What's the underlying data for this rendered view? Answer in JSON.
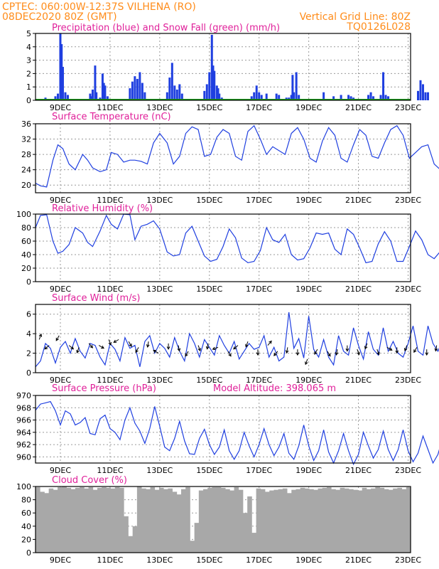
{
  "header": {
    "line1": "CPTEC:   060:00W-12:37S   VILHENA (RO)",
    "line2": "08DEC2020 80Z (GMT)",
    "grid_note": "Vertical Grid Line: 80Z",
    "code": "TQ0126L028"
  },
  "colors": {
    "header": "#ff8c1a",
    "title": "#e0209a",
    "line": "#1f3fe0",
    "snow": "#1e9b1e",
    "cloud": "#a8a8a8",
    "grid": "#9a9a9a"
  },
  "x_tick_labels": [
    "9DEC",
    "11DEC",
    "13DEC",
    "15DEC",
    "17DEC",
    "19DEC",
    "21DEC",
    "23DEC"
  ],
  "chart_data": [
    {
      "id": "precip",
      "type": "bar",
      "title": "Precipitation (blue) and Snow Fall (green) (mm/h)",
      "ylim": [
        0,
        5
      ],
      "yticks": [
        0,
        1,
        2,
        3,
        4,
        5
      ],
      "grid": true,
      "x": [
        0.4,
        0.65,
        0.8,
        0.9,
        1.0,
        1.05,
        1.1,
        1.2,
        1.3,
        1.35,
        2.2,
        2.25,
        2.3,
        2.4,
        2.45,
        2.6,
        2.7,
        2.75,
        2.8,
        2.9,
        3.8,
        3.9,
        4.0,
        4.1,
        4.2,
        4.3,
        4.4,
        5.3,
        5.4,
        5.5,
        5.6,
        5.7,
        5.8,
        5.9,
        6.8,
        6.9,
        7.0,
        7.1,
        7.15,
        7.2,
        7.3,
        7.35,
        7.4,
        7.5,
        8.7,
        8.8,
        8.9,
        9.0,
        9.1,
        9.3,
        9.7,
        9.8,
        10.1,
        10.2,
        10.3,
        10.35,
        10.4,
        10.5,
        10.6,
        11.6,
        12.0,
        12.3,
        12.6,
        12.7,
        12.8,
        13.4,
        13.5,
        13.6,
        13.9,
        14.0,
        14.1,
        14.2,
        15.4,
        15.5,
        15.6,
        15.7,
        15.8,
        16.3
      ],
      "values": [
        0.2,
        0.1,
        0.3,
        0.5,
        5.0,
        4.2,
        2.5,
        0.6,
        0.4,
        0.1,
        0.5,
        0.3,
        0.8,
        2.6,
        0.6,
        0.2,
        2.0,
        1.3,
        1.1,
        0.3,
        0.9,
        1.4,
        1.8,
        1.6,
        2.1,
        1.3,
        0.6,
        0.6,
        1.7,
        2.8,
        1.1,
        0.8,
        1.2,
        0.5,
        0.7,
        1.2,
        2.1,
        4.9,
        2.6,
        2.2,
        1.1,
        0.9,
        0.5,
        0.2,
        0.3,
        0.6,
        1.1,
        0.6,
        0.4,
        0.5,
        0.5,
        0.4,
        0.2,
        0.2,
        0.4,
        1.9,
        0.6,
        2.1,
        0.4,
        0.6,
        0.3,
        0.4,
        0.4,
        0.3,
        0.2,
        0.4,
        0.6,
        0.3,
        0.4,
        2.1,
        0.4,
        0.3,
        0.7,
        1.5,
        1.2,
        0.6,
        0.6,
        1.6
      ],
      "snow": 0
    },
    {
      "id": "temp",
      "type": "line",
      "title": "Surface Temperature (nC)",
      "ylim": [
        18,
        36
      ],
      "yticks": [
        20,
        24,
        28,
        32,
        36
      ],
      "grid": true,
      "x": [
        0,
        0.2,
        0.45,
        0.7,
        0.9,
        1.1,
        1.35,
        1.6,
        1.9,
        2.1,
        2.3,
        2.6,
        2.85,
        3.05,
        3.3,
        3.55,
        3.8,
        4.0,
        4.25,
        4.5,
        4.75,
        5.0,
        5.3,
        5.55,
        5.8,
        6.05,
        6.3,
        6.55,
        6.8,
        7.05,
        7.3,
        7.55,
        7.8,
        8.05,
        8.3,
        8.55,
        8.8,
        9.05,
        9.3,
        9.55,
        9.8,
        10.05,
        10.3,
        10.55,
        10.8,
        11.05,
        11.3,
        11.55,
        11.8,
        12.05,
        12.3,
        12.55,
        12.8,
        13.05,
        13.3,
        13.55,
        13.8,
        14.05,
        14.3,
        14.55,
        14.8,
        15.05,
        15.3,
        15.55,
        15.8,
        16.05,
        16.3,
        16.55,
        16.8,
        17.0
      ],
      "values": [
        20.5,
        19.8,
        19.5,
        26.5,
        30.5,
        29.5,
        25.5,
        24.0,
        28.0,
        26.5,
        24.5,
        23.5,
        24.0,
        28.5,
        28.0,
        26.0,
        26.5,
        26.5,
        26.2,
        25.5,
        31.0,
        33.5,
        31.0,
        25.5,
        27.5,
        33.5,
        35.2,
        34.5,
        27.5,
        28.0,
        32.5,
        34.5,
        33.5,
        27.5,
        26.5,
        34.0,
        35.5,
        32.0,
        28.0,
        30.0,
        29.0,
        28.0,
        33.5,
        35.0,
        32.0,
        27.0,
        26.0,
        31.5,
        35.0,
        33.0,
        27.0,
        26.0,
        30.5,
        34.5,
        33.0,
        27.5,
        27.0,
        31.0,
        34.5,
        35.5,
        33.0,
        27.0,
        28.5,
        30.0,
        30.5,
        25.5,
        24.0,
        23.5,
        24.0,
        29.5
      ]
    },
    {
      "id": "rh",
      "type": "line",
      "title": "Relative Humidity (%)",
      "ylim": [
        0,
        100
      ],
      "yticks": [
        0,
        20,
        40,
        60,
        80,
        100
      ],
      "grid": true,
      "x": [
        0,
        0.2,
        0.45,
        0.7,
        0.9,
        1.1,
        1.35,
        1.6,
        1.9,
        2.1,
        2.3,
        2.6,
        2.85,
        3.05,
        3.3,
        3.55,
        3.8,
        4.0,
        4.25,
        4.5,
        4.75,
        5.0,
        5.3,
        5.55,
        5.8,
        6.05,
        6.3,
        6.55,
        6.8,
        7.05,
        7.3,
        7.55,
        7.8,
        8.05,
        8.3,
        8.55,
        8.8,
        9.05,
        9.3,
        9.55,
        9.8,
        10.05,
        10.3,
        10.55,
        10.8,
        11.05,
        11.3,
        11.55,
        11.8,
        12.05,
        12.3,
        12.55,
        12.8,
        13.05,
        13.3,
        13.55,
        13.8,
        14.05,
        14.3,
        14.55,
        14.8,
        15.05,
        15.3,
        15.55,
        15.8,
        16.05,
        16.3,
        16.55,
        16.8,
        17.0
      ],
      "values": [
        80,
        98,
        99,
        60,
        42,
        45,
        55,
        80,
        72,
        58,
        52,
        75,
        98,
        85,
        78,
        100,
        99,
        62,
        82,
        85,
        90,
        78,
        44,
        38,
        40,
        72,
        82,
        60,
        38,
        30,
        33,
        52,
        78,
        65,
        35,
        28,
        30,
        46,
        80,
        62,
        58,
        70,
        40,
        32,
        34,
        50,
        72,
        70,
        72,
        48,
        40,
        78,
        70,
        50,
        28,
        30,
        56,
        74,
        60,
        30,
        30,
        52,
        75,
        62,
        40,
        34,
        45,
        72,
        58,
        76
      ]
    },
    {
      "id": "wind",
      "type": "line",
      "title": "Surface Wind (m/s)",
      "ylim": [
        0,
        7
      ],
      "yticks": [
        0,
        2,
        4,
        6
      ],
      "grid": true,
      "x": [
        0,
        0.2,
        0.4,
        0.6,
        0.8,
        1.0,
        1.2,
        1.4,
        1.6,
        1.8,
        2.0,
        2.2,
        2.4,
        2.6,
        2.8,
        3.0,
        3.2,
        3.4,
        3.6,
        3.8,
        4.0,
        4.2,
        4.4,
        4.6,
        4.8,
        5.0,
        5.2,
        5.4,
        5.6,
        5.8,
        6.0,
        6.2,
        6.4,
        6.6,
        6.8,
        7.0,
        7.2,
        7.4,
        7.6,
        7.8,
        8.0,
        8.2,
        8.4,
        8.6,
        8.8,
        9.0,
        9.2,
        9.4,
        9.6,
        9.8,
        10.0,
        10.2,
        10.4,
        10.6,
        10.8,
        11.0,
        11.2,
        11.4,
        11.6,
        11.8,
        12.0,
        12.2,
        12.4,
        12.6,
        12.8,
        13.0,
        13.2,
        13.4,
        13.6,
        13.8,
        14.0,
        14.2,
        14.4,
        14.6,
        14.8,
        15.0,
        15.2,
        15.4,
        15.6,
        15.8,
        16.0,
        16.2,
        16.4,
        16.6,
        16.8,
        17.0
      ],
      "values": [
        0.6,
        1.2,
        3.0,
        2.5,
        1.0,
        2.6,
        3.2,
        2.0,
        3.5,
        2.2,
        1.5,
        3.0,
        2.8,
        1.6,
        0.8,
        3.0,
        2.4,
        1.2,
        3.6,
        2.5,
        2.8,
        0.6,
        3.2,
        3.8,
        2.0,
        3.0,
        2.5,
        1.6,
        3.6,
        2.2,
        1.2,
        4.0,
        3.0,
        1.6,
        3.4,
        2.6,
        1.8,
        3.8,
        2.8,
        2.0,
        3.2,
        1.4,
        2.2,
        3.0,
        2.4,
        2.6,
        3.8,
        1.6,
        2.6,
        1.2,
        1.6,
        6.2,
        2.5,
        3.5,
        1.5,
        5.8,
        2.4,
        1.6,
        3.4,
        1.6,
        0.8,
        3.8,
        2.2,
        1.8,
        4.6,
        2.8,
        1.4,
        4.2,
        2.4,
        1.8,
        4.6,
        2.2,
        3.2,
        2.0,
        1.6,
        3.0,
        4.8,
        2.2,
        1.8,
        4.8,
        3.0,
        2.2,
        3.4,
        2.0,
        0.8,
        3.2
      ],
      "arrow_x": [
        0.15,
        0.55,
        0.95,
        1.35,
        1.75,
        2.15,
        2.55,
        2.95,
        3.35,
        3.75,
        4.15,
        4.55,
        4.95,
        5.35,
        5.75,
        6.15,
        6.55,
        6.95,
        7.35,
        7.75,
        8.15,
        8.55,
        8.95,
        9.35,
        9.75,
        10.15,
        10.55,
        10.95,
        11.35,
        11.75,
        12.15,
        12.55,
        12.95,
        13.35,
        13.75,
        14.15,
        14.55,
        14.95,
        15.35,
        15.75,
        16.15,
        16.55
      ],
      "arrow_y": [
        3.4,
        2.8,
        3.8,
        2.8,
        2.6,
        3.0,
        2.8,
        3.4,
        3.4,
        3.2,
        2.6,
        3.2,
        2.0,
        3.0,
        2.8,
        2.2,
        2.8,
        3.0,
        2.6,
        2.2,
        2.8,
        3.2,
        2.4,
        2.8,
        2.2,
        2.6,
        2.4,
        1.4,
        2.4,
        2.2,
        2.4,
        2.8,
        2.4,
        3.0,
        2.4,
        2.6,
        2.6,
        2.8,
        2.6,
        2.4,
        2.8,
        2.6
      ],
      "arrow_dir_deg": [
        20,
        230,
        210,
        130,
        200,
        140,
        120,
        160,
        240,
        150,
        210,
        190,
        300,
        180,
        170,
        210,
        160,
        190,
        250,
        150,
        230,
        200,
        180,
        40,
        220,
        190,
        180,
        200,
        210,
        150,
        190,
        180,
        160,
        200,
        160,
        120,
        180,
        200,
        210,
        180,
        190,
        120
      ]
    },
    {
      "id": "pressure",
      "type": "line",
      "title": "Surface Pressure (hPa)",
      "annotation": "Model Altitude: 398.065 m",
      "ylim": [
        959,
        970
      ],
      "yticks": [
        960,
        962,
        964,
        966,
        968,
        970
      ],
      "grid": true,
      "x": [
        0,
        0.2,
        0.4,
        0.6,
        0.8,
        1.0,
        1.2,
        1.4,
        1.6,
        1.8,
        2.0,
        2.2,
        2.4,
        2.6,
        2.8,
        3.0,
        3.2,
        3.4,
        3.6,
        3.8,
        4.0,
        4.2,
        4.4,
        4.6,
        4.8,
        5.0,
        5.2,
        5.4,
        5.6,
        5.8,
        6.0,
        6.2,
        6.4,
        6.6,
        6.8,
        7.0,
        7.2,
        7.4,
        7.6,
        7.8,
        8.0,
        8.2,
        8.4,
        8.6,
        8.8,
        9.0,
        9.2,
        9.4,
        9.6,
        9.8,
        10.0,
        10.2,
        10.4,
        10.6,
        10.8,
        11.0,
        11.2,
        11.4,
        11.6,
        11.8,
        12.0,
        12.2,
        12.4,
        12.6,
        12.8,
        13.0,
        13.2,
        13.4,
        13.6,
        13.8,
        14.0,
        14.2,
        14.4,
        14.6,
        14.8,
        15.0,
        15.2,
        15.4,
        15.6,
        15.8,
        16.0,
        16.2,
        16.4,
        16.6,
        16.8,
        17.0
      ],
      "values": [
        967.6,
        968.6,
        968.8,
        969.0,
        967.5,
        965.2,
        967.5,
        967.0,
        965.2,
        965.6,
        966.4,
        963.8,
        963.6,
        966.2,
        966.8,
        964.6,
        964.0,
        962.8,
        966.0,
        968.0,
        965.5,
        964.2,
        962.2,
        964.6,
        968.2,
        965.0,
        961.6,
        961.0,
        963.0,
        965.8,
        962.6,
        960.5,
        960.4,
        963.0,
        964.5,
        962.0,
        960.4,
        961.6,
        964.4,
        961.0,
        959.6,
        961.0,
        964.0,
        961.8,
        960.0,
        962.0,
        964.6,
        962.0,
        960.2,
        961.6,
        963.8,
        960.6,
        959.6,
        961.8,
        965.2,
        961.8,
        959.4,
        961.0,
        964.4,
        960.8,
        959.0,
        961.0,
        963.8,
        961.0,
        958.8,
        960.4,
        964.0,
        961.8,
        959.8,
        961.2,
        964.2,
        961.2,
        959.4,
        961.2,
        964.4,
        961.0,
        959.2,
        960.6,
        963.4,
        961.2,
        959.0,
        960.4,
        963.2,
        961.4,
        958.6,
        960.8
      ]
    },
    {
      "id": "cloud",
      "type": "bar",
      "title": "Cloud Cover (%)",
      "ylim": [
        0,
        100
      ],
      "yticks": [
        0,
        20,
        40,
        60,
        80,
        100
      ],
      "grid": true,
      "x": [
        0.0,
        0.2,
        0.4,
        0.6,
        0.8,
        1.0,
        1.2,
        1.4,
        1.6,
        1.8,
        2.0,
        2.2,
        2.4,
        2.6,
        2.8,
        3.0,
        3.2,
        3.4,
        3.6,
        3.8,
        4.0,
        4.2,
        4.4,
        4.6,
        4.8,
        5.0,
        5.2,
        5.4,
        5.6,
        5.8,
        6.0,
        6.2,
        6.4,
        6.6,
        6.8,
        7.0,
        7.2,
        7.4,
        7.6,
        7.8,
        8.0,
        8.2,
        8.4,
        8.6,
        8.8,
        9.0,
        9.2,
        9.4,
        9.6,
        9.8,
        10.0,
        10.2,
        10.4,
        10.6,
        10.8,
        11.0,
        11.2,
        11.4,
        11.6,
        11.8,
        12.0,
        12.2,
        12.4,
        12.6,
        12.8,
        13.0,
        13.2,
        13.4,
        13.6,
        13.8,
        14.0,
        14.2,
        14.4,
        14.6,
        14.8,
        15.0,
        15.2,
        15.4,
        15.6,
        15.8,
        16.0,
        16.2,
        16.4,
        16.6,
        16.8
      ],
      "values": [
        99,
        92,
        90,
        97,
        95,
        99,
        100,
        98,
        96,
        98,
        99,
        97,
        99,
        95,
        98,
        99,
        98,
        97,
        99,
        98,
        55,
        25,
        40,
        100,
        97,
        96,
        99,
        95,
        98,
        96,
        97,
        92,
        88,
        96,
        99,
        18,
        45,
        94,
        96,
        98,
        99,
        99,
        98,
        96,
        94,
        99,
        95,
        60,
        85,
        30,
        97,
        96,
        92,
        94,
        95,
        96,
        97,
        90,
        95,
        96,
        98,
        97,
        96,
        95,
        97,
        98,
        99,
        96,
        95,
        98,
        97,
        96,
        95,
        94,
        98,
        96,
        97,
        99,
        98,
        96,
        95,
        97,
        98,
        96,
        99
      ]
    }
  ]
}
